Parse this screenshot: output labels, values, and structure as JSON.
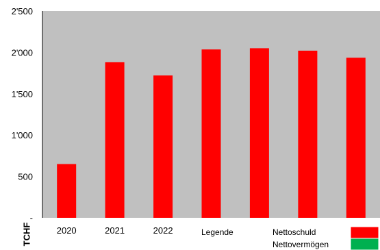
{
  "chart_data": {
    "type": "bar",
    "title": "",
    "xlabel": "",
    "ylabel": "TCHF",
    "categories": [
      "2020",
      "2021",
      "2022",
      "",
      "",
      "",
      ""
    ],
    "series": [
      {
        "name": "Nettoschuld",
        "color": "#ff0000",
        "values": [
          650,
          1880,
          1720,
          2035,
          2050,
          2020,
          1935
        ]
      }
    ],
    "ylim": [
      0,
      2500
    ],
    "yticks": [
      0,
      500,
      1000,
      1500,
      2000,
      2500
    ],
    "ytick_labels": [
      "-",
      "500",
      "1'000",
      "1'500",
      "2'000",
      "2'500"
    ],
    "grid": false,
    "plot_background": "#c0c0c0",
    "legend": {
      "title": "Legende",
      "placement": "bottom-right",
      "items": [
        {
          "label": "Nettoschuld",
          "color": "#ff0000"
        },
        {
          "label": "Nettovermögen",
          "color": "#00b050"
        }
      ]
    }
  }
}
